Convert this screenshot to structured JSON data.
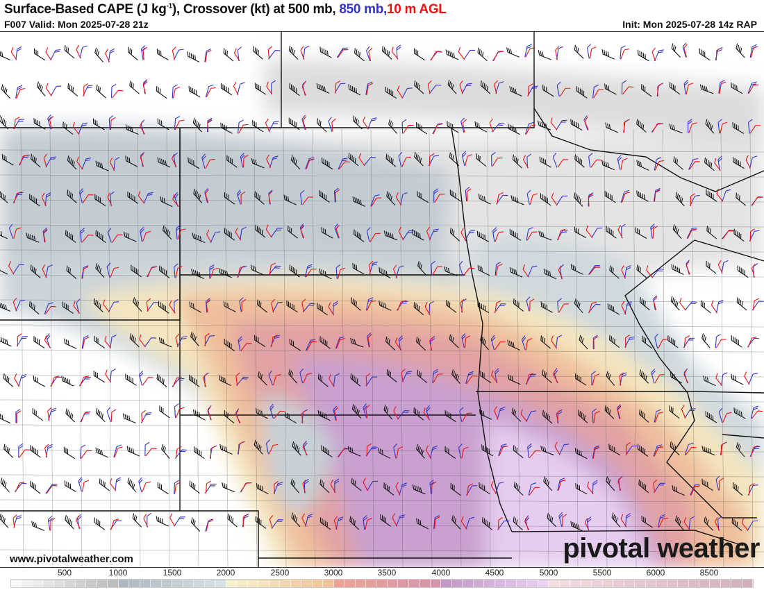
{
  "header": {
    "title_main": "Surface-Based CAPE (J kg",
    "title_sup": "-1",
    "title_mid": "), Crossover (kt) at 500 mb, ",
    "title_850": "850 mb",
    "title_comma": ",",
    "title_10m": "10 m AGL",
    "valid": "F007 Valid: Mon 2025-07-28 21z",
    "init": "Init: Mon 2025-07-28 14z RAP"
  },
  "watermark": {
    "site": "www.pivotalweather.com",
    "logo": "pivotal weather"
  },
  "legend": {
    "labels": [
      "500",
      "1000",
      "1500",
      "2000",
      "2500",
      "3000",
      "3500",
      "4000",
      "4500",
      "5000",
      "5500",
      "6000",
      "8500"
    ],
    "color_stops": [
      {
        "from": "#f8f8f8",
        "to": "#bdbdbd",
        "cells": 10
      },
      {
        "from": "#aeb8c0",
        "to": "#d7e2e4",
        "cells": 10
      },
      {
        "from": "#f6f1cd",
        "to": "#f0c39a",
        "cells": 10
      },
      {
        "from": "#eba596",
        "to": "#d595ab",
        "cells": 10
      },
      {
        "from": "#c497c9",
        "to": "#e8d2f0",
        "cells": 10
      },
      {
        "from": "#f3dde1",
        "to": "#d2b0bb",
        "cells": 19
      }
    ]
  },
  "colors": {
    "barb_500": "#111111",
    "barb_850": "#3333cc",
    "barb_10m": "#ee1111"
  }
}
